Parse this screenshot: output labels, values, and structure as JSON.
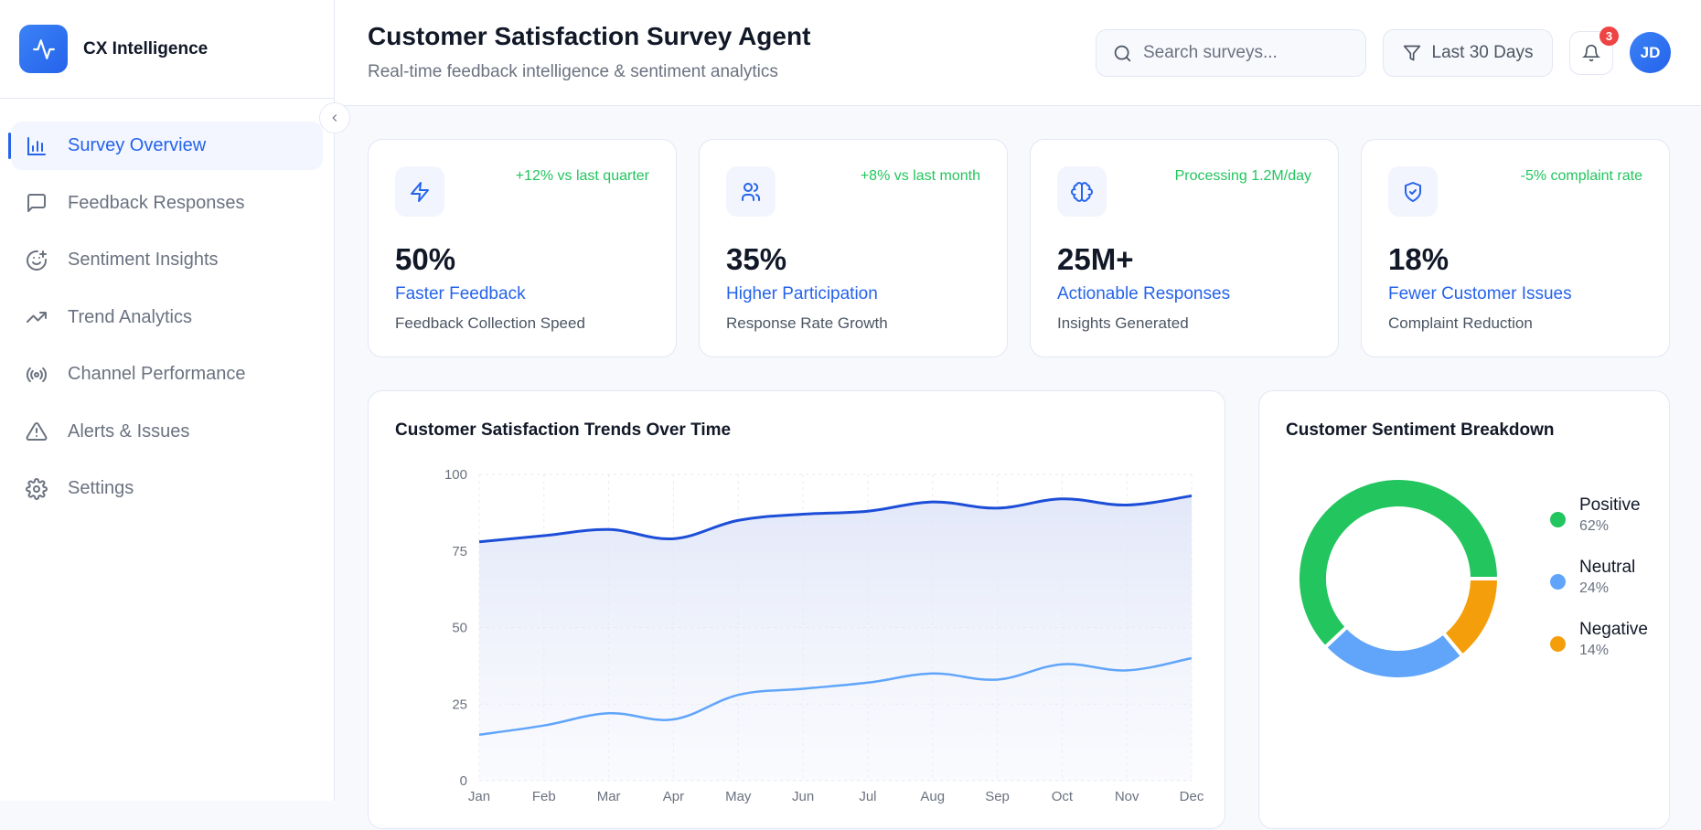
{
  "brand": {
    "name": "CX Intelligence",
    "icon": "activity-icon"
  },
  "sidebar": {
    "items": [
      {
        "label": "Survey Overview",
        "icon": "bar-chart-icon",
        "active": true
      },
      {
        "label": "Feedback Responses",
        "icon": "message-square-icon"
      },
      {
        "label": "Sentiment Insights",
        "icon": "smile-plus-icon"
      },
      {
        "label": "Trend Analytics",
        "icon": "trending-up-icon"
      },
      {
        "label": "Channel Performance",
        "icon": "radio-icon"
      },
      {
        "label": "Alerts & Issues",
        "icon": "alert-triangle-icon"
      },
      {
        "label": "Settings",
        "icon": "gear-icon"
      }
    ]
  },
  "header": {
    "title": "Customer Satisfaction Survey Agent",
    "subtitle": "Real-time feedback intelligence & sentiment analytics",
    "search_placeholder": "Search surveys...",
    "filter_label": "Last 30 Days",
    "notification_count": "3",
    "avatar_initials": "JD"
  },
  "stats": [
    {
      "trend": "+12% vs last quarter",
      "value": "50%",
      "label": "Faster Feedback",
      "sub": "Feedback Collection Speed",
      "icon": "zap-icon"
    },
    {
      "trend": "+8% vs last month",
      "value": "35%",
      "label": "Higher Participation",
      "sub": "Response Rate Growth",
      "icon": "users-icon"
    },
    {
      "trend": "Processing 1.2M/day",
      "value": "25M+",
      "label": "Actionable Responses",
      "sub": "Insights Generated",
      "icon": "brain-icon"
    },
    {
      "trend": "-5% complaint rate",
      "value": "18%",
      "label": "Fewer Customer Issues",
      "sub": "Complaint Reduction",
      "icon": "shield-check-icon"
    }
  ],
  "colors": {
    "accent": "#2563eb",
    "positive": "#22c55e",
    "neutral": "#60a5fa",
    "negative": "#f59e0b",
    "series_dark": "#1d4ed8",
    "series_light": "#60a5fa"
  },
  "chart_data": [
    {
      "type": "line",
      "title": "Customer Satisfaction Trends Over Time",
      "categories": [
        "Jan",
        "Feb",
        "Mar",
        "Apr",
        "May",
        "Jun",
        "Jul",
        "Aug",
        "Sep",
        "Oct",
        "Nov",
        "Dec"
      ],
      "yticks": [
        "0",
        "25",
        "50",
        "75",
        "100"
      ],
      "ylim": [
        0,
        100
      ],
      "grid": true,
      "series": [
        {
          "values": [
            78,
            80,
            82,
            79,
            85,
            87,
            88,
            91,
            89,
            92,
            90,
            93
          ],
          "color": "#1d4ed8",
          "fill": true
        },
        {
          "values": [
            15,
            18,
            22,
            20,
            28,
            30,
            32,
            35,
            33,
            38,
            36,
            40
          ],
          "color": "#60a5fa",
          "fill": false
        }
      ]
    },
    {
      "type": "pie",
      "title": "Customer Sentiment Breakdown",
      "donut": true,
      "legend": "right",
      "slices": [
        {
          "name": "Positive",
          "value": 62,
          "pct": "62%",
          "color": "#22c55e"
        },
        {
          "name": "Neutral",
          "value": 24,
          "pct": "24%",
          "color": "#60a5fa"
        },
        {
          "name": "Negative",
          "value": 14,
          "pct": "14%",
          "color": "#f59e0b"
        }
      ]
    }
  ]
}
